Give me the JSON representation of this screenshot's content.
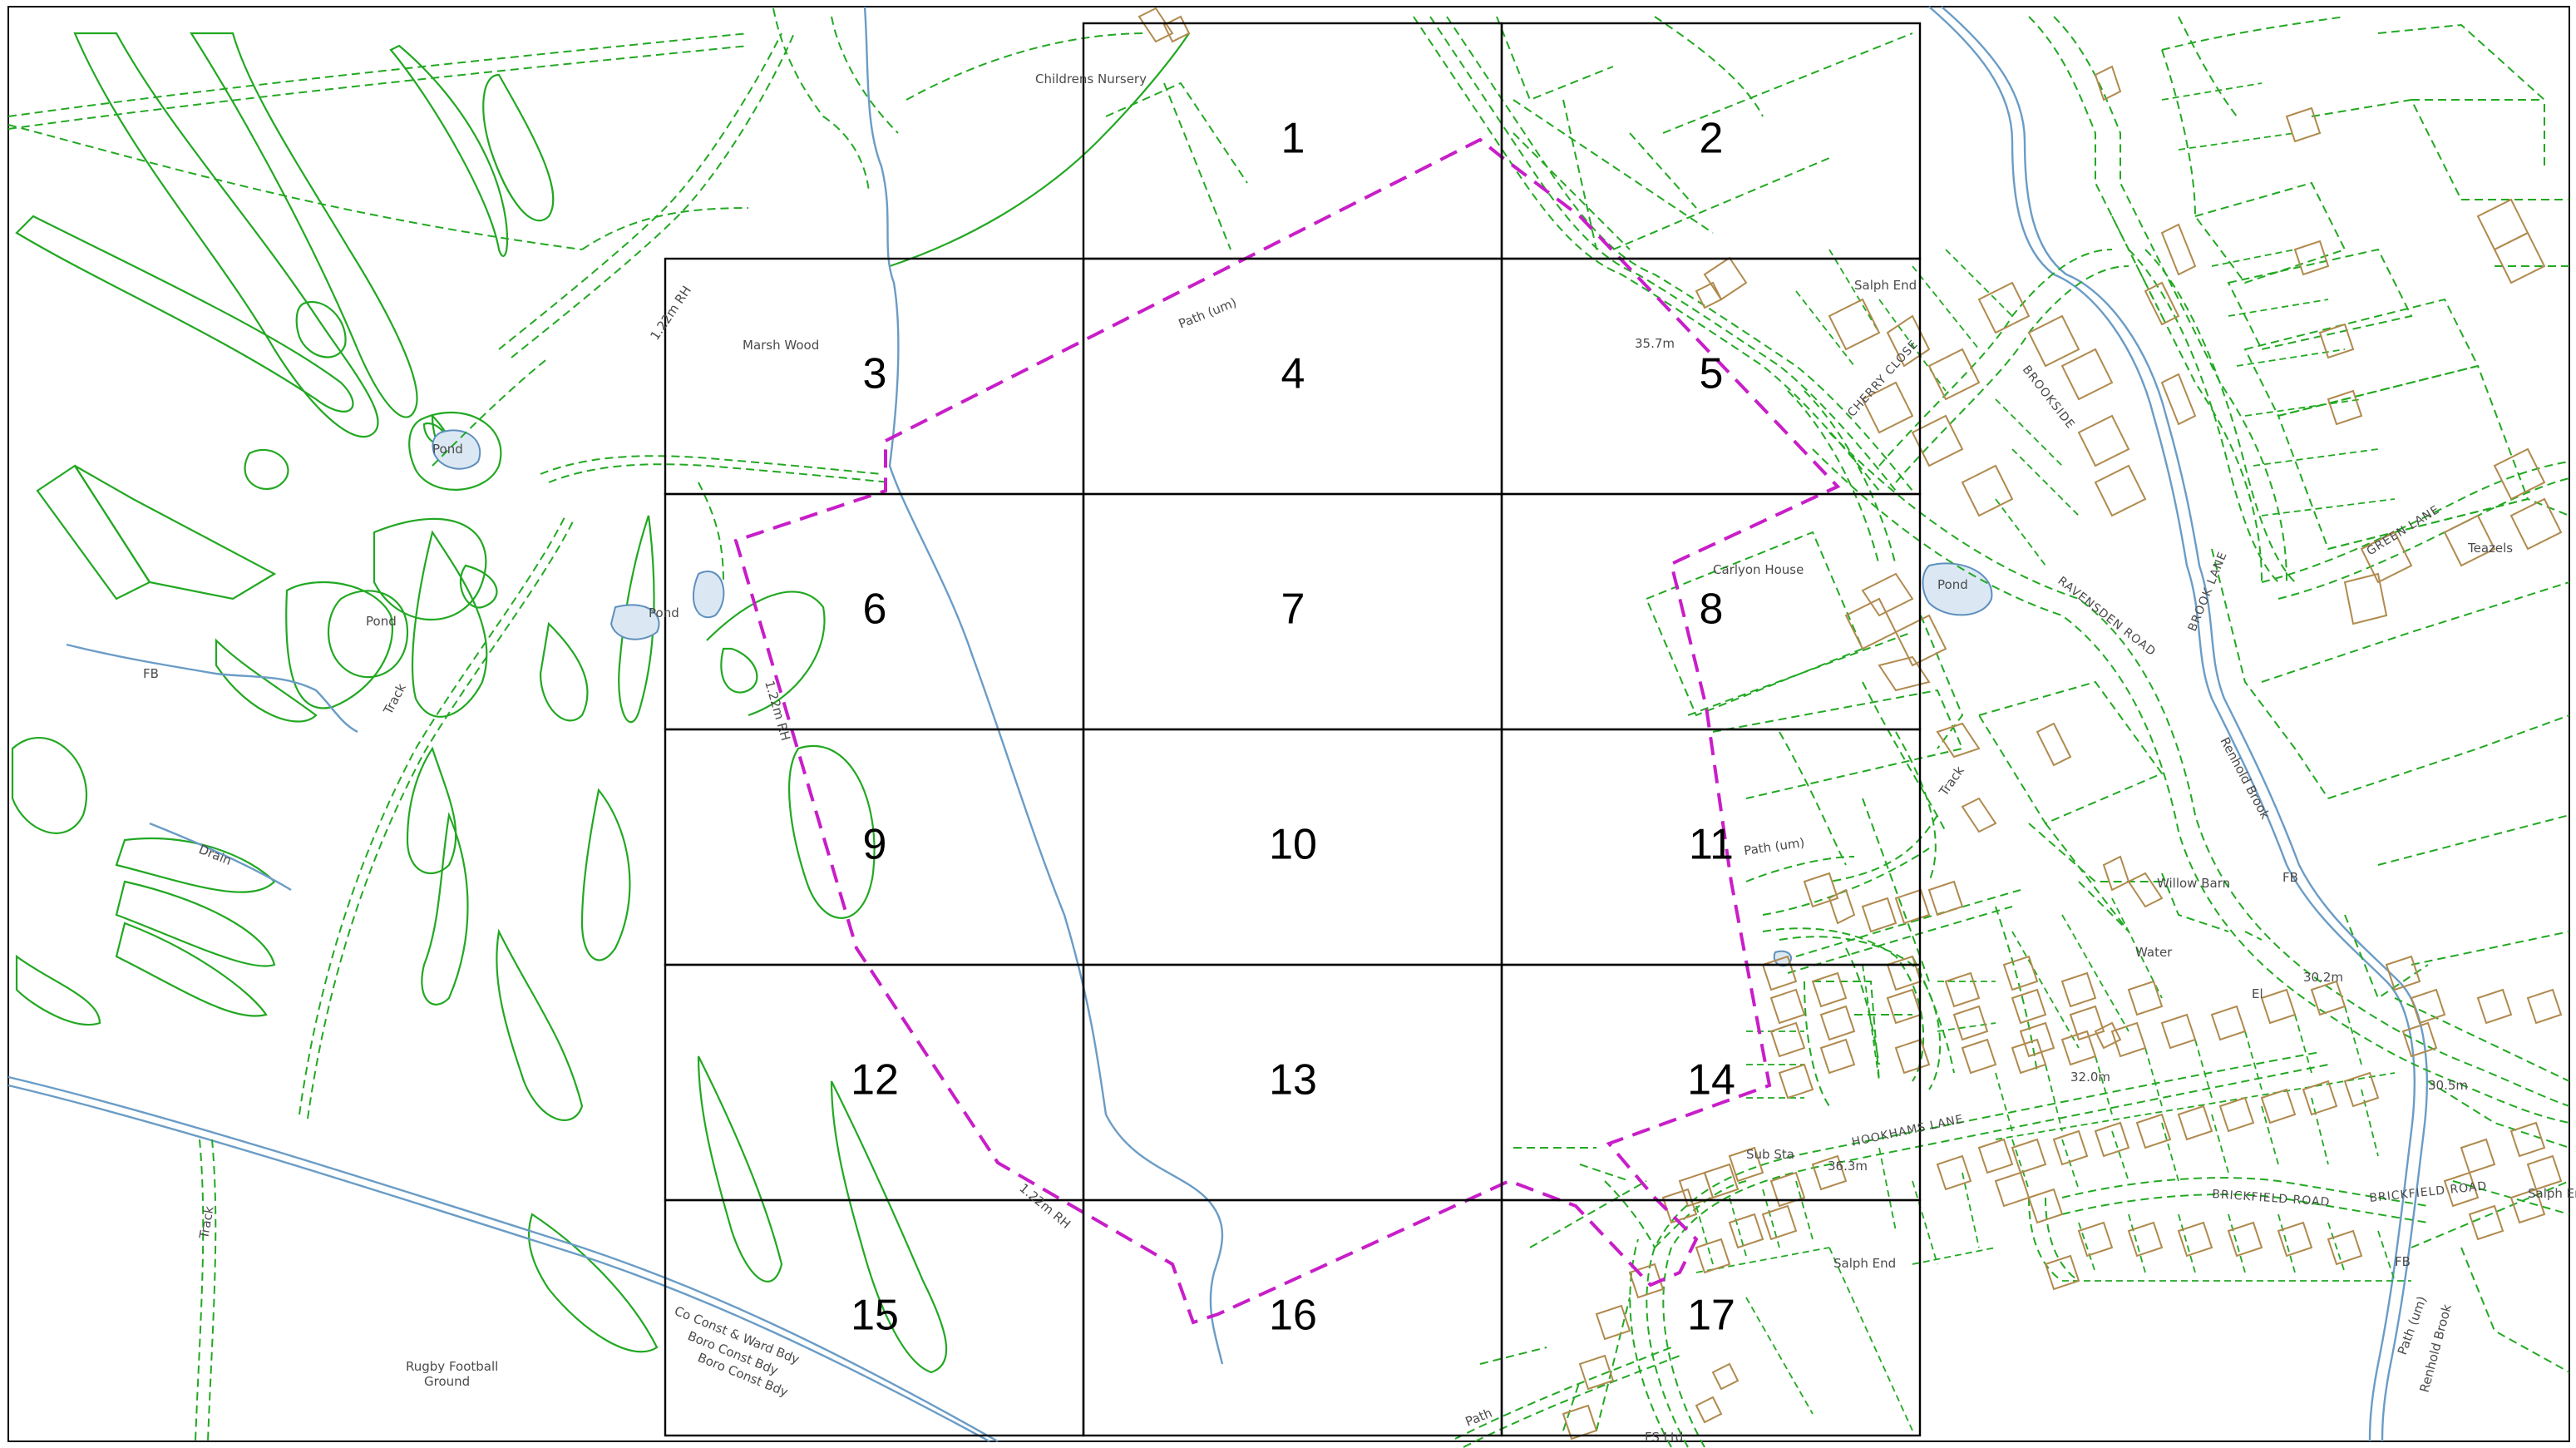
{
  "grid": {
    "cells": [
      "1",
      "2",
      "3",
      "4",
      "5",
      "6",
      "7",
      "8",
      "9",
      "10",
      "11",
      "12",
      "13",
      "14",
      "15",
      "16",
      "17"
    ]
  },
  "labels": {
    "childrens_nursery": "Childrens Nursery",
    "marsh_wood": "Marsh Wood",
    "path_um_1": "Path (um)",
    "salph_end_1": "Salph End",
    "spot_height_357": "35.7m",
    "pond_west_1": "Pond",
    "pond_west_2": "Pond",
    "pond_mid": "Pond",
    "pond_east": "Pond",
    "carlyon_house": "Carlyon House",
    "fb_1": "FB",
    "drain": "Drain",
    "track_1": "Track",
    "track_2": "Track",
    "track_3": "Track",
    "rh_1": "1.22m RH",
    "rh_2": "1.22m RH",
    "rh_3": "1.22m RH",
    "path_um_2": "Path (um)",
    "willow_barn": "Willow Barn",
    "fb_2": "FB",
    "water": "Water",
    "teazels": "Teazels",
    "green_lane": "GREEN LANE",
    "brook_lane": "BROOK LANE",
    "ravensden_road": "RAVENSDEN ROAD",
    "brookside": "BROOKSIDE",
    "cherry_close": "CHERRY CLOSE",
    "renhold_brook_1": "Renhold Brook",
    "renhold_brook_2": "Renhold Brook",
    "spot_302": "30.2m",
    "spot_305": "30.5m",
    "spot_320": "32.0m",
    "spot_363": "36.3m",
    "hookhams_lane": "HOOKHAMS LANE",
    "brickfield_road_1": "BRICKFIELD ROAD",
    "brickfield_road_2": "BRICKFIELD ROAD",
    "salph_end_2": "Salph End",
    "salph_end_3": "Salph End",
    "sub_sta": "Sub Sta",
    "fb_3": "FB",
    "path_um_3": "Path (um)",
    "path_2": "Path",
    "fs_ltd": "FS Ltd",
    "el": "El",
    "rugby_football_1": "Rugby Football",
    "rugby_football_2": "Ground",
    "boundary_1": "Co Const & Ward Bdy",
    "boundary_2": "Boro Const Bdy",
    "boundary_3": "Boro Const Bdy"
  },
  "colors": {
    "grid": "#000000",
    "site_boundary": "#c81ec8",
    "vegetation": "#22a822",
    "water": "#6a9cc6",
    "buildings": "#b08a4e"
  }
}
